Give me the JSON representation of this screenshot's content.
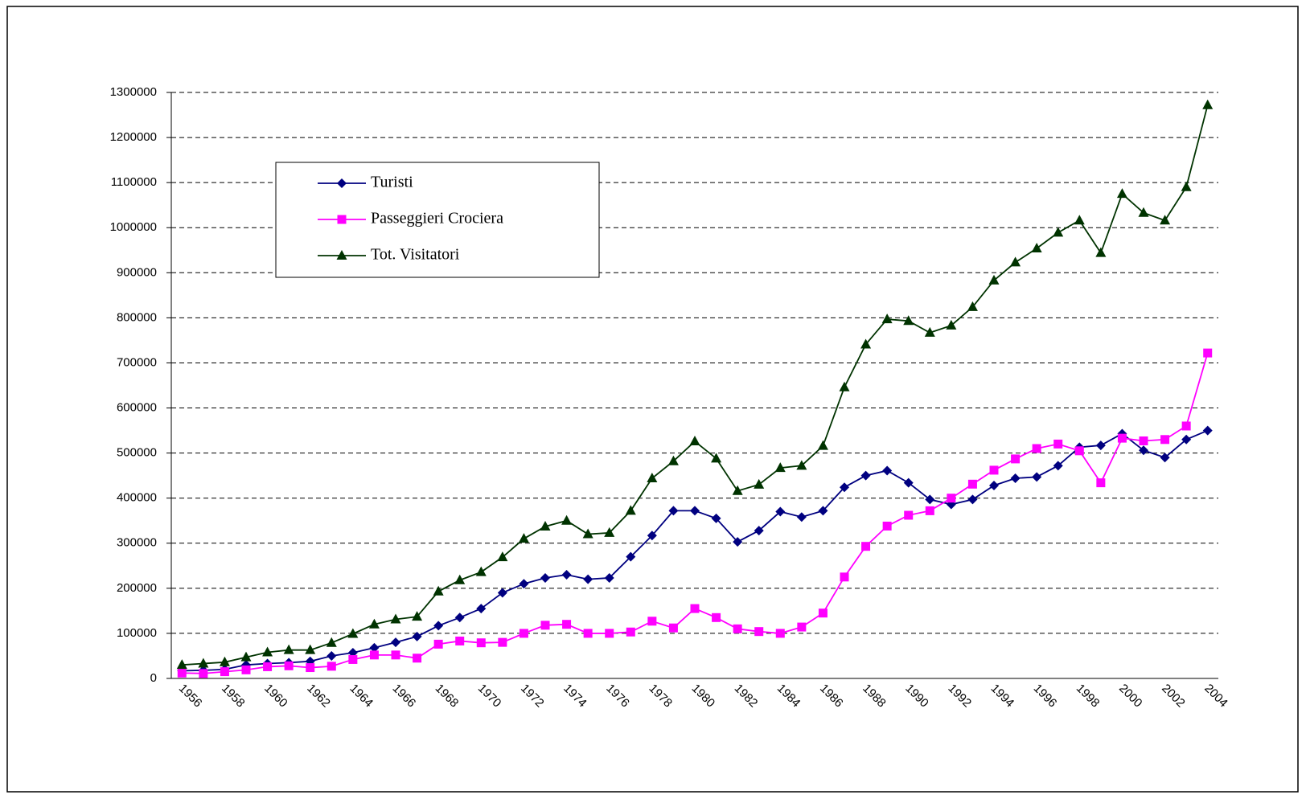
{
  "chart_data": {
    "type": "line",
    "categories": [
      "1956",
      null,
      "1958",
      null,
      "1960",
      null,
      "1962",
      null,
      "1964",
      null,
      "1966",
      null,
      "1968",
      null,
      "1970",
      null,
      "1972",
      null,
      "1974",
      null,
      "1976",
      null,
      "1978",
      null,
      "1980",
      null,
      "1982",
      null,
      "1984",
      null,
      "1986",
      null,
      "1988",
      null,
      "1990",
      null,
      "1992",
      null,
      "1994",
      null,
      "1996",
      null,
      "1998",
      null,
      "2000",
      null,
      "2002",
      null,
      "2004"
    ],
    "series": [
      {
        "name": "Turisti",
        "color": "#000080",
        "marker": "diamond",
        "values": [
          17000,
          18000,
          20000,
          30000,
          33000,
          35000,
          38000,
          50000,
          57000,
          68000,
          80000,
          93000,
          117000,
          135000,
          155000,
          190000,
          210000,
          223000,
          230000,
          220000,
          223000,
          270000,
          317000,
          372000,
          372000,
          355000,
          303000,
          328000,
          370000,
          358000,
          372000,
          424000,
          450000,
          461000,
          434000,
          397000,
          386000,
          397000,
          428000,
          444000,
          447000,
          472000,
          513000,
          517000,
          543000,
          506000,
          490000,
          530000,
          550000
        ]
      },
      {
        "name": "Passeggieri Crociera",
        "color": "#ff00ff",
        "marker": "square",
        "values": [
          12000,
          11000,
          15000,
          19000,
          26000,
          28000,
          24000,
          27000,
          42000,
          52000,
          52000,
          45000,
          76000,
          83000,
          79000,
          80000,
          100000,
          118000,
          120000,
          100000,
          100000,
          103000,
          127000,
          112000,
          155000,
          135000,
          110000,
          104000,
          100000,
          114000,
          145000,
          225000,
          293000,
          338000,
          362000,
          372000,
          400000,
          431000,
          462000,
          487000,
          510000,
          520000,
          505000,
          434000,
          533000,
          527000,
          530000,
          560000,
          722000
        ]
      },
      {
        "name": "Tot. Visitatori",
        "color": "#003300",
        "marker": "triangle",
        "values": [
          30000,
          33000,
          36000,
          47000,
          58000,
          63000,
          63000,
          79000,
          99000,
          120000,
          131000,
          137000,
          193000,
          218000,
          236000,
          269000,
          310000,
          337000,
          350000,
          320000,
          323000,
          372000,
          444000,
          482000,
          526000,
          488000,
          416000,
          430000,
          467000,
          472000,
          516000,
          646000,
          741000,
          797000,
          793000,
          767000,
          783000,
          824000,
          883000,
          923000,
          954000,
          989000,
          1016000,
          944000,
          1075000,
          1033000,
          1016000,
          1090000,
          1272000
        ]
      }
    ],
    "ylim": [
      0,
      1300000
    ],
    "yticks": [
      0,
      100000,
      200000,
      300000,
      400000,
      500000,
      600000,
      700000,
      800000,
      900000,
      1000000,
      1100000,
      1200000,
      1300000
    ],
    "grid": true,
    "legend": "upper-left"
  }
}
